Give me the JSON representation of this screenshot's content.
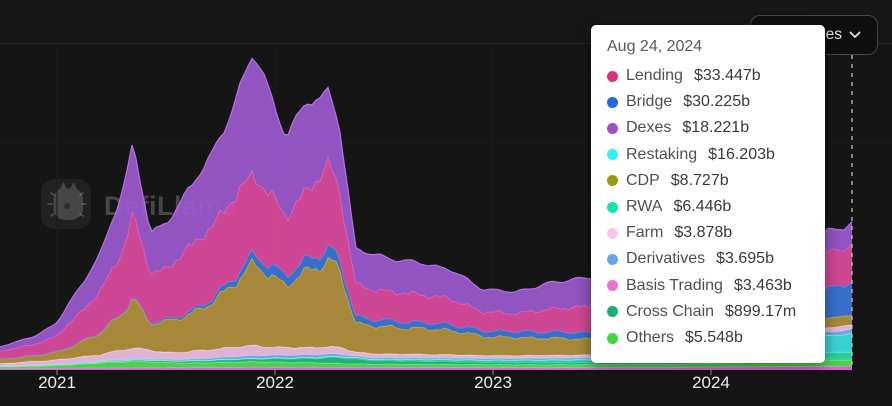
{
  "header": {
    "categories_button_label": "Categories"
  },
  "watermark": {
    "text": "DefiLlama"
  },
  "tooltip": {
    "date": "Aug 24, 2024"
  },
  "chart_data": {
    "type": "area",
    "stacked": true,
    "title": "",
    "xlabel": "",
    "ylabel": "",
    "unit": "USD (b = billions, m = millions)",
    "hover_date": "Aug 24, 2024",
    "x_ticks": [
      {
        "year": 2021,
        "label": "2021"
      },
      {
        "year": 2022,
        "label": "2022"
      },
      {
        "year": 2023,
        "label": "2023"
      },
      {
        "year": 2024,
        "label": "2024"
      }
    ],
    "x_range_years": [
      2020.74,
      2024.647
    ],
    "ylim_billions": [
      0,
      290
    ],
    "grid": "faint",
    "legend_position": "tooltip-only",
    "stack_bottom_to_top": [
      "Basis Trading",
      "Others",
      "Cross Chain",
      "RWA",
      "Restaking",
      "Derivatives",
      "Farm",
      "CDP",
      "Bridge",
      "Lending",
      "Dexes"
    ],
    "series": [
      {
        "name": "Lending",
        "value_label": "$33.447b",
        "value_billions": 33.447,
        "dot_color": "#d9327f",
        "area_color": "#dd4b9e",
        "stroke_color": "#f06ab8",
        "jitter": 0.09,
        "points": [
          [
            2020.74,
            7
          ],
          [
            2020.9,
            10
          ],
          [
            2021.0,
            14
          ],
          [
            2021.1,
            26
          ],
          [
            2021.2,
            36
          ],
          [
            2021.3,
            55
          ],
          [
            2021.35,
            76
          ],
          [
            2021.43,
            42
          ],
          [
            2021.5,
            46
          ],
          [
            2021.6,
            56
          ],
          [
            2021.7,
            64
          ],
          [
            2021.8,
            70
          ],
          [
            2021.9,
            72
          ],
          [
            2022.0,
            60
          ],
          [
            2022.05,
            52
          ],
          [
            2022.15,
            62
          ],
          [
            2022.25,
            74
          ],
          [
            2022.3,
            62
          ],
          [
            2022.37,
            28
          ],
          [
            2022.5,
            26
          ],
          [
            2022.65,
            25
          ],
          [
            2022.8,
            23
          ],
          [
            2022.95,
            17
          ],
          [
            2023.1,
            16
          ],
          [
            2023.3,
            21
          ],
          [
            2023.45,
            23
          ],
          [
            2023.6,
            19
          ],
          [
            2023.8,
            18
          ],
          [
            2024.0,
            28
          ],
          [
            2024.2,
            34
          ],
          [
            2024.35,
            32
          ],
          [
            2024.5,
            30
          ],
          [
            2024.647,
            33.447
          ]
        ]
      },
      {
        "name": "Bridge",
        "value_label": "$30.225b",
        "value_billions": 30.225,
        "dot_color": "#2368e0",
        "area_color": "#3a76d9",
        "stroke_color": "#5b93e8",
        "jitter": 0.13,
        "points": [
          [
            2020.74,
            0.1
          ],
          [
            2021.3,
            0.5
          ],
          [
            2021.5,
            1.5
          ],
          [
            2021.7,
            3
          ],
          [
            2021.9,
            8
          ],
          [
            2022.0,
            9
          ],
          [
            2022.15,
            10
          ],
          [
            2022.25,
            11
          ],
          [
            2022.37,
            6
          ],
          [
            2022.6,
            5.5
          ],
          [
            2022.9,
            5
          ],
          [
            2023.2,
            5.5
          ],
          [
            2023.5,
            6
          ],
          [
            2023.8,
            7
          ],
          [
            2024.0,
            11
          ],
          [
            2024.2,
            16
          ],
          [
            2024.4,
            20
          ],
          [
            2024.55,
            26
          ],
          [
            2024.647,
            30.225
          ]
        ]
      },
      {
        "name": "Dexes",
        "value_label": "$18.221b",
        "value_billions": 18.221,
        "dot_color": "#a050c8",
        "area_color": "#9c59cf",
        "stroke_color": "#b87ae8",
        "jitter": 0.1,
        "points": [
          [
            2020.74,
            4
          ],
          [
            2020.9,
            7
          ],
          [
            2021.0,
            12
          ],
          [
            2021.1,
            22
          ],
          [
            2021.2,
            34
          ],
          [
            2021.3,
            52
          ],
          [
            2021.35,
            62
          ],
          [
            2021.43,
            36
          ],
          [
            2021.5,
            40
          ],
          [
            2021.6,
            52
          ],
          [
            2021.7,
            62
          ],
          [
            2021.8,
            80
          ],
          [
            2021.86,
            95
          ],
          [
            2021.9,
            108
          ],
          [
            2021.95,
            100
          ],
          [
            2022.0,
            82
          ],
          [
            2022.05,
            70
          ],
          [
            2022.15,
            80
          ],
          [
            2022.25,
            62
          ],
          [
            2022.3,
            55
          ],
          [
            2022.37,
            32
          ],
          [
            2022.5,
            30
          ],
          [
            2022.65,
            28
          ],
          [
            2022.8,
            26
          ],
          [
            2022.95,
            20
          ],
          [
            2023.1,
            19
          ],
          [
            2023.3,
            24
          ],
          [
            2023.45,
            26
          ],
          [
            2023.6,
            20
          ],
          [
            2023.8,
            19
          ],
          [
            2024.0,
            24
          ],
          [
            2024.2,
            28
          ],
          [
            2024.35,
            24
          ],
          [
            2024.5,
            20
          ],
          [
            2024.647,
            18.221
          ]
        ]
      },
      {
        "name": "Restaking",
        "value_label": "$16.203b",
        "value_billions": 16.203,
        "dot_color": "#2ef2ee",
        "area_color": "#3cdfe3",
        "stroke_color": "#8ef7f7",
        "jitter": 0.06,
        "points": [
          [
            2020.74,
            0
          ],
          [
            2023.6,
            0
          ],
          [
            2023.8,
            0.5
          ],
          [
            2023.95,
            2
          ],
          [
            2024.1,
            6
          ],
          [
            2024.25,
            11
          ],
          [
            2024.4,
            14
          ],
          [
            2024.55,
            15
          ],
          [
            2024.647,
            16.203
          ]
        ]
      },
      {
        "name": "CDP",
        "value_label": "$8.727b",
        "value_billions": 8.727,
        "dot_color": "#9a9b11",
        "area_color": "#b3913d",
        "stroke_color": "#cdbf3e",
        "jitter": 0.1,
        "points": [
          [
            2020.74,
            4
          ],
          [
            2020.9,
            5
          ],
          [
            2021.0,
            7
          ],
          [
            2021.1,
            12
          ],
          [
            2021.2,
            20
          ],
          [
            2021.3,
            32
          ],
          [
            2021.35,
            44
          ],
          [
            2021.43,
            24
          ],
          [
            2021.5,
            27
          ],
          [
            2021.6,
            33
          ],
          [
            2021.7,
            40
          ],
          [
            2021.8,
            55
          ],
          [
            2021.9,
            72
          ],
          [
            2022.0,
            62
          ],
          [
            2022.05,
            55
          ],
          [
            2022.15,
            68
          ],
          [
            2022.25,
            78
          ],
          [
            2022.3,
            66
          ],
          [
            2022.37,
            26
          ],
          [
            2022.5,
            24
          ],
          [
            2022.65,
            23
          ],
          [
            2022.8,
            22
          ],
          [
            2022.95,
            17
          ],
          [
            2023.1,
            16
          ],
          [
            2023.3,
            15
          ],
          [
            2023.45,
            14
          ],
          [
            2023.6,
            13
          ],
          [
            2023.8,
            12
          ],
          [
            2024.0,
            11
          ],
          [
            2024.2,
            10
          ],
          [
            2024.4,
            9
          ],
          [
            2024.647,
            8.727
          ]
        ]
      },
      {
        "name": "RWA",
        "value_label": "$6.446b",
        "value_billions": 6.446,
        "dot_color": "#0fe3b0",
        "area_color": "#2fd9a8",
        "stroke_color": "#6feec9",
        "jitter": 0.1,
        "points": [
          [
            2020.74,
            0.1
          ],
          [
            2021.5,
            0.3
          ],
          [
            2022.0,
            0.5
          ],
          [
            2022.3,
            1
          ],
          [
            2022.6,
            1.5
          ],
          [
            2023.0,
            2
          ],
          [
            2023.5,
            2.8
          ],
          [
            2024.0,
            4
          ],
          [
            2024.3,
            5
          ],
          [
            2024.647,
            6.446
          ]
        ]
      },
      {
        "name": "Farm",
        "value_label": "$3.878b",
        "value_billions": 3.878,
        "dot_color": "#f7c6ea",
        "area_color": "#efc0e4",
        "stroke_color": "#fadef3",
        "jitter": 0.12,
        "points": [
          [
            2020.74,
            2.5
          ],
          [
            2021.0,
            4
          ],
          [
            2021.2,
            6
          ],
          [
            2021.35,
            10
          ],
          [
            2021.5,
            6
          ],
          [
            2021.9,
            9
          ],
          [
            2022.0,
            7
          ],
          [
            2022.3,
            6
          ],
          [
            2022.37,
            3.5
          ],
          [
            2022.7,
            3
          ],
          [
            2023.0,
            2.5
          ],
          [
            2023.5,
            2.5
          ],
          [
            2024.0,
            3
          ],
          [
            2024.647,
            3.878
          ]
        ]
      },
      {
        "name": "Derivatives",
        "value_label": "$3.695b",
        "value_billions": 3.695,
        "dot_color": "#64a7e8",
        "area_color": "#77b0ea",
        "stroke_color": "#a5ccf5",
        "jitter": 0.1,
        "points": [
          [
            2020.74,
            0.2
          ],
          [
            2021.0,
            0.4
          ],
          [
            2021.5,
            1
          ],
          [
            2021.9,
            2.5
          ],
          [
            2022.25,
            2.5
          ],
          [
            2022.37,
            1.5
          ],
          [
            2023.0,
            1.5
          ],
          [
            2023.5,
            1.8
          ],
          [
            2024.0,
            2.5
          ],
          [
            2024.647,
            3.695
          ]
        ]
      },
      {
        "name": "Basis Trading",
        "value_label": "$3.463b",
        "value_billions": 3.463,
        "dot_color": "#f06fd3",
        "area_color": "#e46fdd",
        "stroke_color": "#f392ec",
        "jitter": 0.05,
        "points": [
          [
            2020.74,
            1.2
          ],
          [
            2021.2,
            1.8
          ],
          [
            2021.9,
            2.5
          ],
          [
            2022.3,
            2.5
          ],
          [
            2023.0,
            2.2
          ],
          [
            2023.8,
            2.2
          ],
          [
            2024.2,
            3
          ],
          [
            2024.647,
            3.463
          ]
        ]
      },
      {
        "name": "Cross Chain",
        "value_label": "$899.17m",
        "value_billions": 0.89917,
        "dot_color": "#16b077",
        "area_color": "#27bd82",
        "stroke_color": "#55d9a4",
        "jitter": 0.14,
        "points": [
          [
            2020.74,
            0.2
          ],
          [
            2021.3,
            0.8
          ],
          [
            2021.9,
            2.5
          ],
          [
            2022.2,
            4
          ],
          [
            2022.3,
            5.5
          ],
          [
            2022.45,
            3
          ],
          [
            2022.8,
            2.5
          ],
          [
            2023.0,
            2
          ],
          [
            2023.5,
            1.6
          ],
          [
            2024.0,
            1.2
          ],
          [
            2024.647,
            0.899
          ]
        ]
      },
      {
        "name": "Others",
        "value_label": "$5.548b",
        "value_billions": 5.548,
        "dot_color": "#3fd93f",
        "area_color": "#52e052",
        "stroke_color": "#8aef8a",
        "jitter": 0.1,
        "points": [
          [
            2020.74,
            1.5
          ],
          [
            2021.0,
            2.5
          ],
          [
            2021.35,
            6
          ],
          [
            2021.6,
            4
          ],
          [
            2021.9,
            5
          ],
          [
            2022.2,
            4
          ],
          [
            2022.37,
            3
          ],
          [
            2022.8,
            2.8
          ],
          [
            2023.2,
            2.6
          ],
          [
            2023.7,
            2.8
          ],
          [
            2024.0,
            3.5
          ],
          [
            2024.3,
            4.5
          ],
          [
            2024.647,
            5.548
          ]
        ]
      }
    ]
  }
}
